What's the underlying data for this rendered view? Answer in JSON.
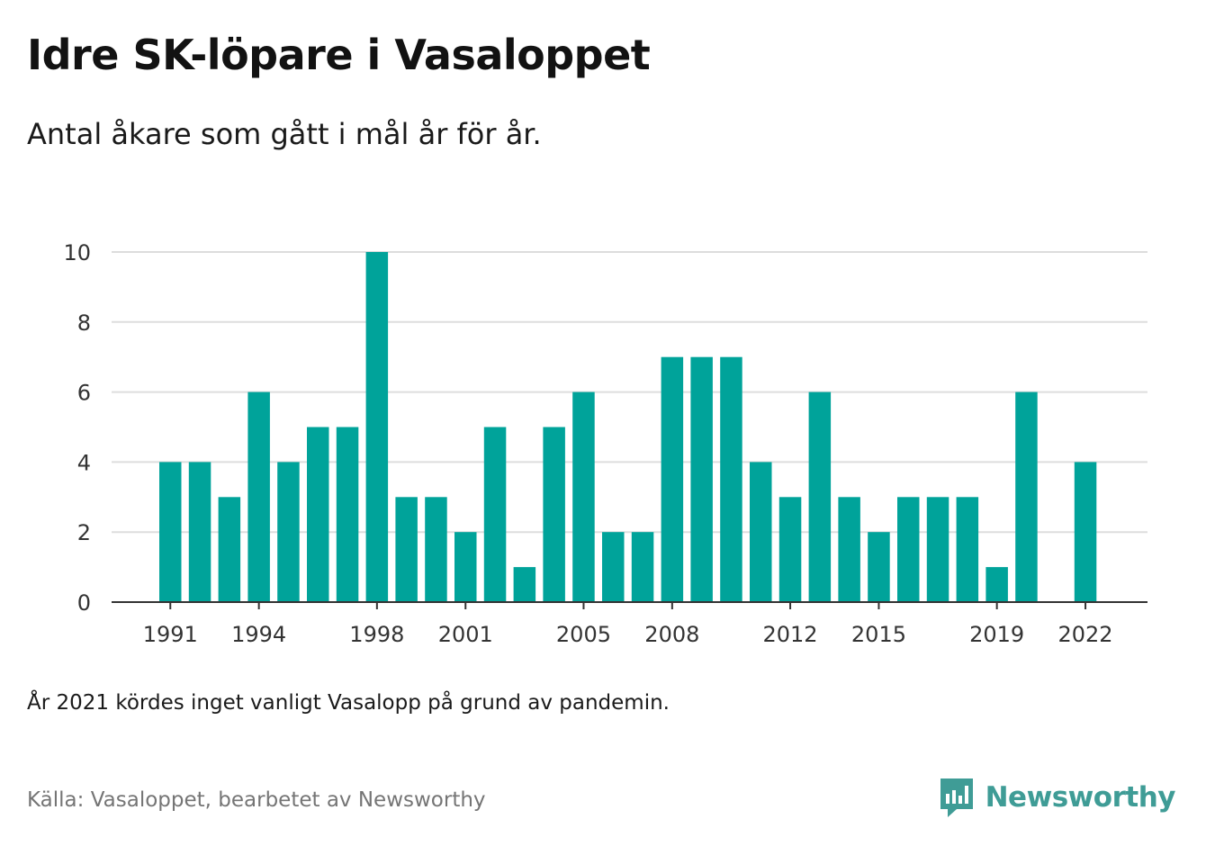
{
  "title": "Idre SK-löpare i Vasaloppet",
  "subtitle": "Antal åkare som gått i mål år för år.",
  "note": "År 2021 kördes inget vanligt Vasalopp på grund av pandemin.",
  "source": "Källa: Vasaloppet, bearbetet av Newsworthy",
  "brand": {
    "name": "Newsworthy",
    "icon": "newsworthy-logo-icon",
    "color": "#3f9c96"
  },
  "colors": {
    "bar": "#00a39a",
    "grid": "#dddddd",
    "axis": "#333333"
  },
  "chart_data": {
    "type": "bar",
    "categories": [
      "1991",
      "1992",
      "1993",
      "1994",
      "1995",
      "1996",
      "1997",
      "1998",
      "1999",
      "2000",
      "2001",
      "2002",
      "2003",
      "2004",
      "2005",
      "2006",
      "2007",
      "2008",
      "2009",
      "2010",
      "2011",
      "2012",
      "2013",
      "2014",
      "2015",
      "2016",
      "2017",
      "2018",
      "2019",
      "2020",
      "2021",
      "2022"
    ],
    "values": [
      4,
      4,
      3,
      6,
      4,
      5,
      5,
      10,
      3,
      3,
      2,
      5,
      1,
      5,
      6,
      2,
      2,
      7,
      7,
      7,
      4,
      3,
      6,
      3,
      2,
      3,
      3,
      3,
      1,
      6,
      null,
      4
    ],
    "x_tick_labels": [
      "1991",
      "1994",
      "1998",
      "2001",
      "2005",
      "2008",
      "2012",
      "2015",
      "2019",
      "2022"
    ],
    "y_ticks": [
      0,
      2,
      4,
      6,
      8,
      10
    ],
    "ylim": [
      0,
      10
    ],
    "grid": true
  }
}
